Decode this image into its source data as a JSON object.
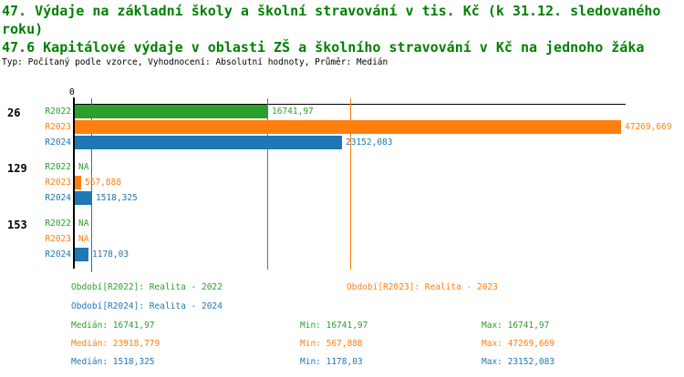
{
  "header": {
    "title_line1": "47. Výdaje na základní školy a školní stravování v tis. Kč (k 31.12. sledovaného roku)",
    "title_line2": "47.6 Kapitálové výdaje v oblasti ZŠ a školního stravování v Kč na jednoho žáka",
    "meta_line": "Typ: Počítaný podle vzorce, Vyhodnocení: Absolutní hodnoty, Průměr: Medián",
    "title_color": "#008000"
  },
  "chart_data": {
    "type": "bar",
    "orientation": "horizontal",
    "title": "47.6 Kapitálové výdaje v oblasti ZŠ a školního stravování v Kč na jednoho žáka",
    "axis": {
      "zero_label": "0",
      "xmax": 47660,
      "grid": "median-lines-only"
    },
    "series_colors": {
      "R2022": "#2ca02c",
      "R2023": "#ff7f0e",
      "R2024": "#1f77b4"
    },
    "median_lines": [
      {
        "series": "R2022",
        "value": 16741.97
      },
      {
        "series": "R2023",
        "value": 23918.779
      },
      {
        "series": "R2024",
        "value": 1518.325
      }
    ],
    "groups": [
      {
        "label": "26",
        "bars": [
          {
            "series": "R2022",
            "value": 16741.97,
            "label": "16741,97"
          },
          {
            "series": "R2023",
            "value": 47269.669,
            "label": "47269,669"
          },
          {
            "series": "R2024",
            "value": 23152.083,
            "label": "23152,083"
          }
        ]
      },
      {
        "label": "129",
        "bars": [
          {
            "series": "R2022",
            "value": null,
            "label": "NA"
          },
          {
            "series": "R2023",
            "value": 567.888,
            "label": "567,888"
          },
          {
            "series": "R2024",
            "value": 1518.325,
            "label": "1518,325"
          }
        ]
      },
      {
        "label": "153",
        "bars": [
          {
            "series": "R2022",
            "value": null,
            "label": "NA"
          },
          {
            "series": "R2023",
            "value": null,
            "label": "NA"
          },
          {
            "series": "R2024",
            "value": 1178.03,
            "label": "1178,03"
          }
        ]
      }
    ]
  },
  "legend": {
    "items": [
      {
        "label": "Období[R2022]: Realita - 2022",
        "color": "#2ca02c"
      },
      {
        "label": "Období[R2023]: Realita - 2023",
        "color": "#ff7f0e"
      },
      {
        "label": "Období[R2024]: Realita - 2024",
        "color": "#1f77b4"
      }
    ]
  },
  "stats": {
    "rows": [
      {
        "series": "R2022",
        "color": "#2ca02c",
        "median": "Medián: 16741,97",
        "min": "Min: 16741,97",
        "max": "Max: 16741,97"
      },
      {
        "series": "R2023",
        "color": "#ff7f0e",
        "median": "Medián: 23918,779",
        "min": "Min: 567,888",
        "max": "Max: 47269,669"
      },
      {
        "series": "R2024",
        "color": "#1f77b4",
        "median": "Medián: 1518,325",
        "min": "Min: 1178,03",
        "max": "Max: 23152,083"
      }
    ]
  }
}
